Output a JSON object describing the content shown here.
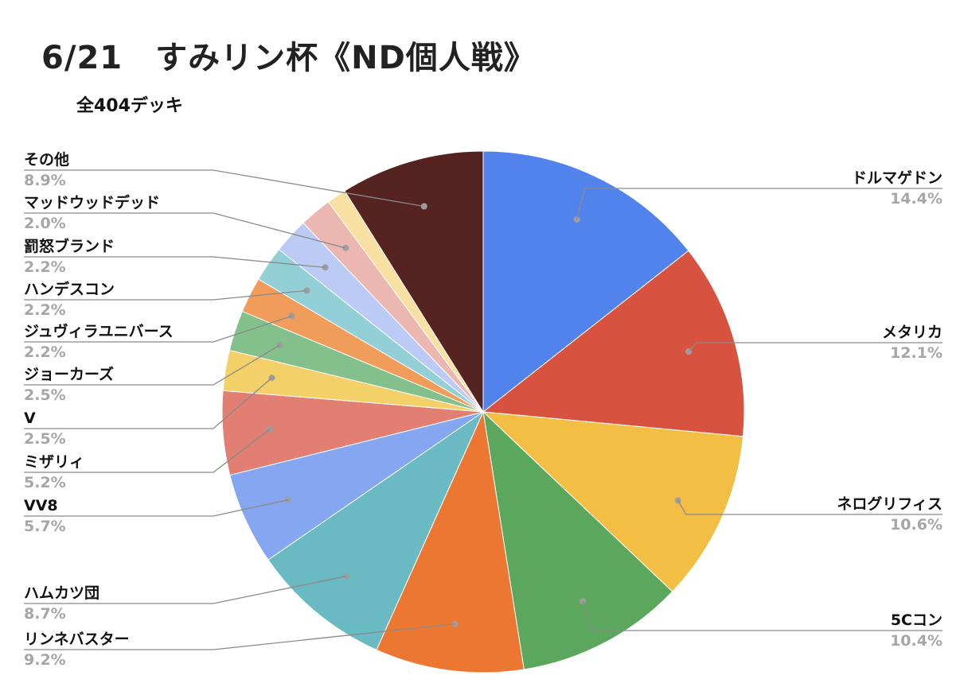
{
  "title": "6/21　すみリン杯《ND個人戦》",
  "subtitle": "全404デッキ",
  "chart_data": {
    "type": "pie",
    "title": "6/21　すみリン杯《ND個人戦》",
    "subtitle": "全404デッキ",
    "start": "12 o'clock",
    "direction": "clockwise",
    "slices": [
      {
        "name": "ドルマゲドン",
        "percent": 14.4,
        "label": "14.4%",
        "color": "#5282ec"
      },
      {
        "name": "メタリカ",
        "percent": 12.1,
        "label": "12.1%",
        "color": "#d85240"
      },
      {
        "name": "ネログリフィス",
        "percent": 10.6,
        "label": "10.6%",
        "color": "#f2be43"
      },
      {
        "name": "5Cコン",
        "percent": 10.4,
        "label": "10.4%",
        "color": "#5aa75d"
      },
      {
        "name": "リンネバスター",
        "percent": 9.2,
        "label": "9.2%",
        "color": "#ec7732"
      },
      {
        "name": "ハムカツ団",
        "percent": 8.7,
        "label": "8.7%",
        "color": "#6abac4"
      },
      {
        "name": "VV8",
        "percent": 5.7,
        "label": "5.7%",
        "color": "#85a6f0"
      },
      {
        "name": "ミザリィ",
        "percent": 5.2,
        "label": "5.2%",
        "color": "#e17f73"
      },
      {
        "name": "V",
        "percent": 2.5,
        "label": "2.5%",
        "color": "#f4d168"
      },
      {
        "name": "ジョーカーズ",
        "percent": 2.5,
        "label": "2.5%",
        "color": "#83c08b"
      },
      {
        "name": "ジュヴィラユニバース",
        "percent": 2.2,
        "label": "2.2%",
        "color": "#f09c5b"
      },
      {
        "name": "ハンデスコン",
        "percent": 2.2,
        "label": "2.2%",
        "color": "#93cfd6"
      },
      {
        "name": "罰怒ブランド",
        "percent": 2.2,
        "label": "2.2%",
        "color": "#bccbf5"
      },
      {
        "name": "マッドウッドデッド",
        "percent": 2.0,
        "label": "2.0%",
        "color": "#ecb6b1"
      },
      {
        "name": "",
        "percent": 1.2,
        "label": "",
        "color": "#f7e0a1"
      },
      {
        "name": "その他",
        "percent": 8.9,
        "label": "8.9%",
        "color": "#562420"
      }
    ]
  }
}
